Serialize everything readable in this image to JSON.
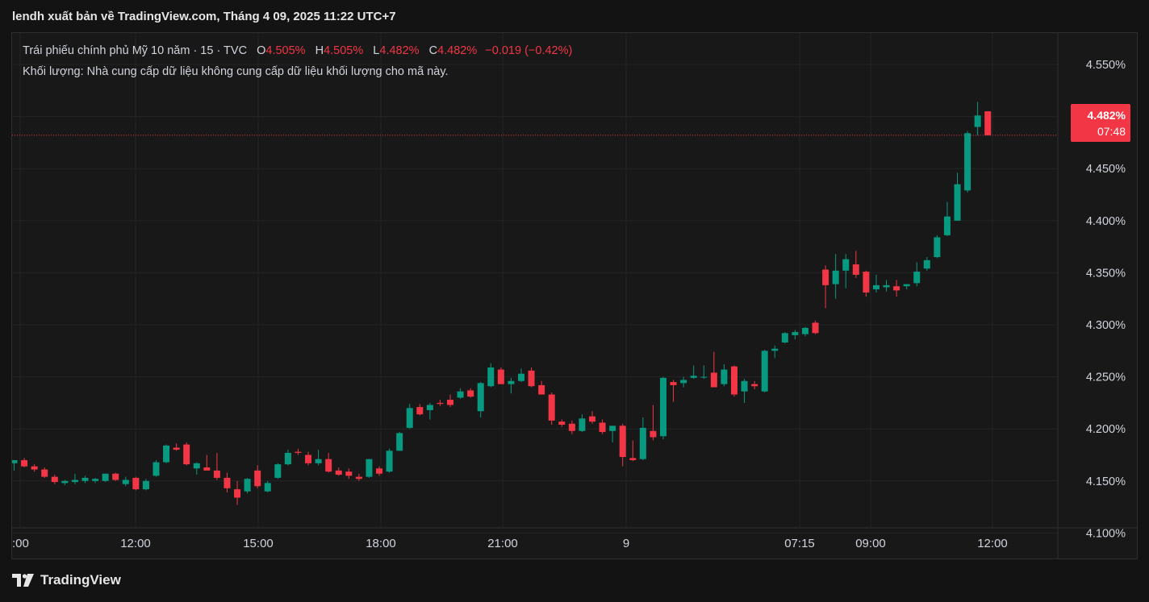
{
  "header": {
    "title": "lendh xuất bản về TradingView.com, Tháng 4 09, 2025 11:22 UTC+7"
  },
  "legend": {
    "symbol": "Trái phiếu chính phủ Mỹ 10 năm · 15 · TVC",
    "o_label": "O",
    "o_value": "4.505%",
    "h_label": "H",
    "h_value": "4.505%",
    "l_label": "L",
    "l_value": "4.482%",
    "c_label": "C",
    "c_value": "4.482%",
    "change": "−0.019 (−0.42%)",
    "volume_note": "Khối lượng: Nhà cung cấp dữ liệu không cung cấp dữ liệu khối lượng cho mã này."
  },
  "badge": {
    "price": "4.482%",
    "countdown": "07:48"
  },
  "footer": {
    "brand": "TradingView"
  },
  "colors": {
    "up": "#089981",
    "down": "#f23645",
    "grid": "#242424",
    "text": "#d1d4dc"
  },
  "chart_data": {
    "type": "candlestick",
    "y_unit": "%",
    "ylim": [
      4.085,
      4.565
    ],
    "y_ticks": [
      "4.550%",
      "4.500%",
      "4.450%",
      "4.400%",
      "4.350%",
      "4.300%",
      "4.250%",
      "4.200%",
      "4.150%",
      "4.100%"
    ],
    "y_tick_values": [
      4.55,
      4.5,
      4.45,
      4.4,
      4.35,
      4.3,
      4.25,
      4.2,
      4.15,
      4.1
    ],
    "x_ticks": [
      ":00",
      "12:00",
      "15:00",
      "18:00",
      "21:00",
      "9",
      "07:15",
      "09:00",
      "12:00"
    ],
    "last_price": 4.482,
    "candles": [
      {
        "o": 4.167,
        "h": 4.17,
        "l": 4.16,
        "c": 4.17
      },
      {
        "o": 4.17,
        "h": 4.172,
        "l": 4.163,
        "c": 4.164
      },
      {
        "o": 4.164,
        "h": 4.166,
        "l": 4.159,
        "c": 4.161
      },
      {
        "o": 4.161,
        "h": 4.163,
        "l": 4.153,
        "c": 4.154
      },
      {
        "o": 4.154,
        "h": 4.156,
        "l": 4.147,
        "c": 4.149
      },
      {
        "o": 4.148,
        "h": 4.151,
        "l": 4.146,
        "c": 4.15
      },
      {
        "o": 4.149,
        "h": 4.157,
        "l": 4.147,
        "c": 4.151
      },
      {
        "o": 4.15,
        "h": 4.155,
        "l": 4.148,
        "c": 4.153
      },
      {
        "o": 4.15,
        "h": 4.153,
        "l": 4.148,
        "c": 4.152
      },
      {
        "o": 4.15,
        "h": 4.157,
        "l": 4.149,
        "c": 4.157
      },
      {
        "o": 4.157,
        "h": 4.158,
        "l": 4.15,
        "c": 4.151
      },
      {
        "o": 4.147,
        "h": 4.154,
        "l": 4.145,
        "c": 4.151
      },
      {
        "o": 4.153,
        "h": 4.154,
        "l": 4.141,
        "c": 4.142
      },
      {
        "o": 4.142,
        "h": 4.152,
        "l": 4.141,
        "c": 4.15
      },
      {
        "o": 4.155,
        "h": 4.17,
        "l": 4.154,
        "c": 4.168
      },
      {
        "o": 4.168,
        "h": 4.185,
        "l": 4.167,
        "c": 4.184
      },
      {
        "o": 4.182,
        "h": 4.186,
        "l": 4.179,
        "c": 4.18
      },
      {
        "o": 4.185,
        "h": 4.187,
        "l": 4.165,
        "c": 4.166
      },
      {
        "o": 4.162,
        "h": 4.168,
        "l": 4.156,
        "c": 4.167
      },
      {
        "o": 4.163,
        "h": 4.175,
        "l": 4.16,
        "c": 4.16
      },
      {
        "o": 4.16,
        "h": 4.177,
        "l": 4.151,
        "c": 4.153
      },
      {
        "o": 4.153,
        "h": 4.158,
        "l": 4.139,
        "c": 4.143
      },
      {
        "o": 4.142,
        "h": 4.15,
        "l": 4.127,
        "c": 4.134
      },
      {
        "o": 4.14,
        "h": 4.153,
        "l": 4.138,
        "c": 4.152
      },
      {
        "o": 4.16,
        "h": 4.165,
        "l": 4.143,
        "c": 4.145
      },
      {
        "o": 4.14,
        "h": 4.15,
        "l": 4.139,
        "c": 4.148
      },
      {
        "o": 4.153,
        "h": 4.167,
        "l": 4.152,
        "c": 4.166
      },
      {
        "o": 4.166,
        "h": 4.18,
        "l": 4.165,
        "c": 4.177
      },
      {
        "o": 4.178,
        "h": 4.181,
        "l": 4.175,
        "c": 4.177
      },
      {
        "o": 4.175,
        "h": 4.178,
        "l": 4.165,
        "c": 4.167
      },
      {
        "o": 4.167,
        "h": 4.18,
        "l": 4.165,
        "c": 4.171
      },
      {
        "o": 4.171,
        "h": 4.177,
        "l": 4.158,
        "c": 4.159
      },
      {
        "o": 4.16,
        "h": 4.163,
        "l": 4.155,
        "c": 4.156
      },
      {
        "o": 4.159,
        "h": 4.162,
        "l": 4.152,
        "c": 4.155
      },
      {
        "o": 4.154,
        "h": 4.157,
        "l": 4.15,
        "c": 4.152
      },
      {
        "o": 4.154,
        "h": 4.171,
        "l": 4.153,
        "c": 4.171
      },
      {
        "o": 4.162,
        "h": 4.164,
        "l": 4.155,
        "c": 4.157
      },
      {
        "o": 4.159,
        "h": 4.181,
        "l": 4.158,
        "c": 4.179
      },
      {
        "o": 4.179,
        "h": 4.197,
        "l": 4.179,
        "c": 4.196
      },
      {
        "o": 4.201,
        "h": 4.224,
        "l": 4.2,
        "c": 4.22
      },
      {
        "o": 4.221,
        "h": 4.224,
        "l": 4.213,
        "c": 4.214
      },
      {
        "o": 4.218,
        "h": 4.225,
        "l": 4.209,
        "c": 4.223
      },
      {
        "o": 4.225,
        "h": 4.228,
        "l": 4.222,
        "c": 4.224
      },
      {
        "o": 4.228,
        "h": 4.233,
        "l": 4.221,
        "c": 4.223
      },
      {
        "o": 4.23,
        "h": 4.239,
        "l": 4.229,
        "c": 4.236
      },
      {
        "o": 4.237,
        "h": 4.239,
        "l": 4.23,
        "c": 4.231
      },
      {
        "o": 4.217,
        "h": 4.245,
        "l": 4.211,
        "c": 4.244
      },
      {
        "o": 4.241,
        "h": 4.263,
        "l": 4.24,
        "c": 4.259
      },
      {
        "o": 4.257,
        "h": 4.259,
        "l": 4.243,
        "c": 4.243
      },
      {
        "o": 4.243,
        "h": 4.249,
        "l": 4.234,
        "c": 4.246
      },
      {
        "o": 4.246,
        "h": 4.258,
        "l": 4.245,
        "c": 4.253
      },
      {
        "o": 4.256,
        "h": 4.259,
        "l": 4.24,
        "c": 4.241
      },
      {
        "o": 4.242,
        "h": 4.246,
        "l": 4.233,
        "c": 4.233
      },
      {
        "o": 4.233,
        "h": 4.235,
        "l": 4.204,
        "c": 4.208
      },
      {
        "o": 4.207,
        "h": 4.209,
        "l": 4.202,
        "c": 4.204
      },
      {
        "o": 4.205,
        "h": 4.208,
        "l": 4.195,
        "c": 4.198
      },
      {
        "o": 4.198,
        "h": 4.214,
        "l": 4.197,
        "c": 4.21
      },
      {
        "o": 4.212,
        "h": 4.217,
        "l": 4.205,
        "c": 4.207
      },
      {
        "o": 4.206,
        "h": 4.209,
        "l": 4.195,
        "c": 4.197
      },
      {
        "o": 4.198,
        "h": 4.203,
        "l": 4.187,
        "c": 4.203
      },
      {
        "o": 4.203,
        "h": 4.205,
        "l": 4.164,
        "c": 4.173
      },
      {
        "o": 4.172,
        "h": 4.189,
        "l": 4.169,
        "c": 4.17
      },
      {
        "o": 4.171,
        "h": 4.211,
        "l": 4.17,
        "c": 4.201
      },
      {
        "o": 4.198,
        "h": 4.223,
        "l": 4.189,
        "c": 4.192
      },
      {
        "o": 4.193,
        "h": 4.25,
        "l": 4.19,
        "c": 4.249
      },
      {
        "o": 4.245,
        "h": 4.247,
        "l": 4.226,
        "c": 4.242
      },
      {
        "o": 4.244,
        "h": 4.25,
        "l": 4.24,
        "c": 4.247
      },
      {
        "o": 4.249,
        "h": 4.261,
        "l": 4.248,
        "c": 4.251
      },
      {
        "o": 4.25,
        "h": 4.261,
        "l": 4.248,
        "c": 4.25
      },
      {
        "o": 4.254,
        "h": 4.274,
        "l": 4.24,
        "c": 4.24
      },
      {
        "o": 4.243,
        "h": 4.262,
        "l": 4.241,
        "c": 4.257
      },
      {
        "o": 4.26,
        "h": 4.261,
        "l": 4.231,
        "c": 4.233
      },
      {
        "o": 4.236,
        "h": 4.248,
        "l": 4.225,
        "c": 4.246
      },
      {
        "o": 4.243,
        "h": 4.246,
        "l": 4.238,
        "c": 4.241
      },
      {
        "o": 4.236,
        "h": 4.276,
        "l": 4.235,
        "c": 4.275
      },
      {
        "o": 4.275,
        "h": 4.28,
        "l": 4.268,
        "c": 4.277
      },
      {
        "o": 4.283,
        "h": 4.293,
        "l": 4.282,
        "c": 4.292
      },
      {
        "o": 4.29,
        "h": 4.295,
        "l": 4.286,
        "c": 4.293
      },
      {
        "o": 4.291,
        "h": 4.298,
        "l": 4.289,
        "c": 4.297
      },
      {
        "o": 4.302,
        "h": 4.304,
        "l": 4.291,
        "c": 4.292
      },
      {
        "o": 4.353,
        "h": 4.357,
        "l": 4.316,
        "c": 4.338
      },
      {
        "o": 4.339,
        "h": 4.368,
        "l": 4.325,
        "c": 4.352
      },
      {
        "o": 4.352,
        "h": 4.368,
        "l": 4.335,
        "c": 4.363
      },
      {
        "o": 4.358,
        "h": 4.371,
        "l": 4.345,
        "c": 4.348
      },
      {
        "o": 4.351,
        "h": 4.352,
        "l": 4.327,
        "c": 4.331
      },
      {
        "o": 4.334,
        "h": 4.348,
        "l": 4.331,
        "c": 4.338
      },
      {
        "o": 4.336,
        "h": 4.343,
        "l": 4.332,
        "c": 4.338
      },
      {
        "o": 4.337,
        "h": 4.343,
        "l": 4.327,
        "c": 4.333
      },
      {
        "o": 4.337,
        "h": 4.339,
        "l": 4.334,
        "c": 4.339
      },
      {
        "o": 4.34,
        "h": 4.36,
        "l": 4.337,
        "c": 4.351
      },
      {
        "o": 4.354,
        "h": 4.365,
        "l": 4.352,
        "c": 4.362
      },
      {
        "o": 4.365,
        "h": 4.386,
        "l": 4.364,
        "c": 4.384
      },
      {
        "o": 4.386,
        "h": 4.418,
        "l": 4.385,
        "c": 4.404
      },
      {
        "o": 4.4,
        "h": 4.446,
        "l": 4.4,
        "c": 4.435
      },
      {
        "o": 4.429,
        "h": 4.486,
        "l": 4.427,
        "c": 4.484
      },
      {
        "o": 4.49,
        "h": 4.514,
        "l": 4.482,
        "c": 4.501
      },
      {
        "o": 4.505,
        "h": 4.505,
        "l": 4.482,
        "c": 4.482
      }
    ]
  }
}
